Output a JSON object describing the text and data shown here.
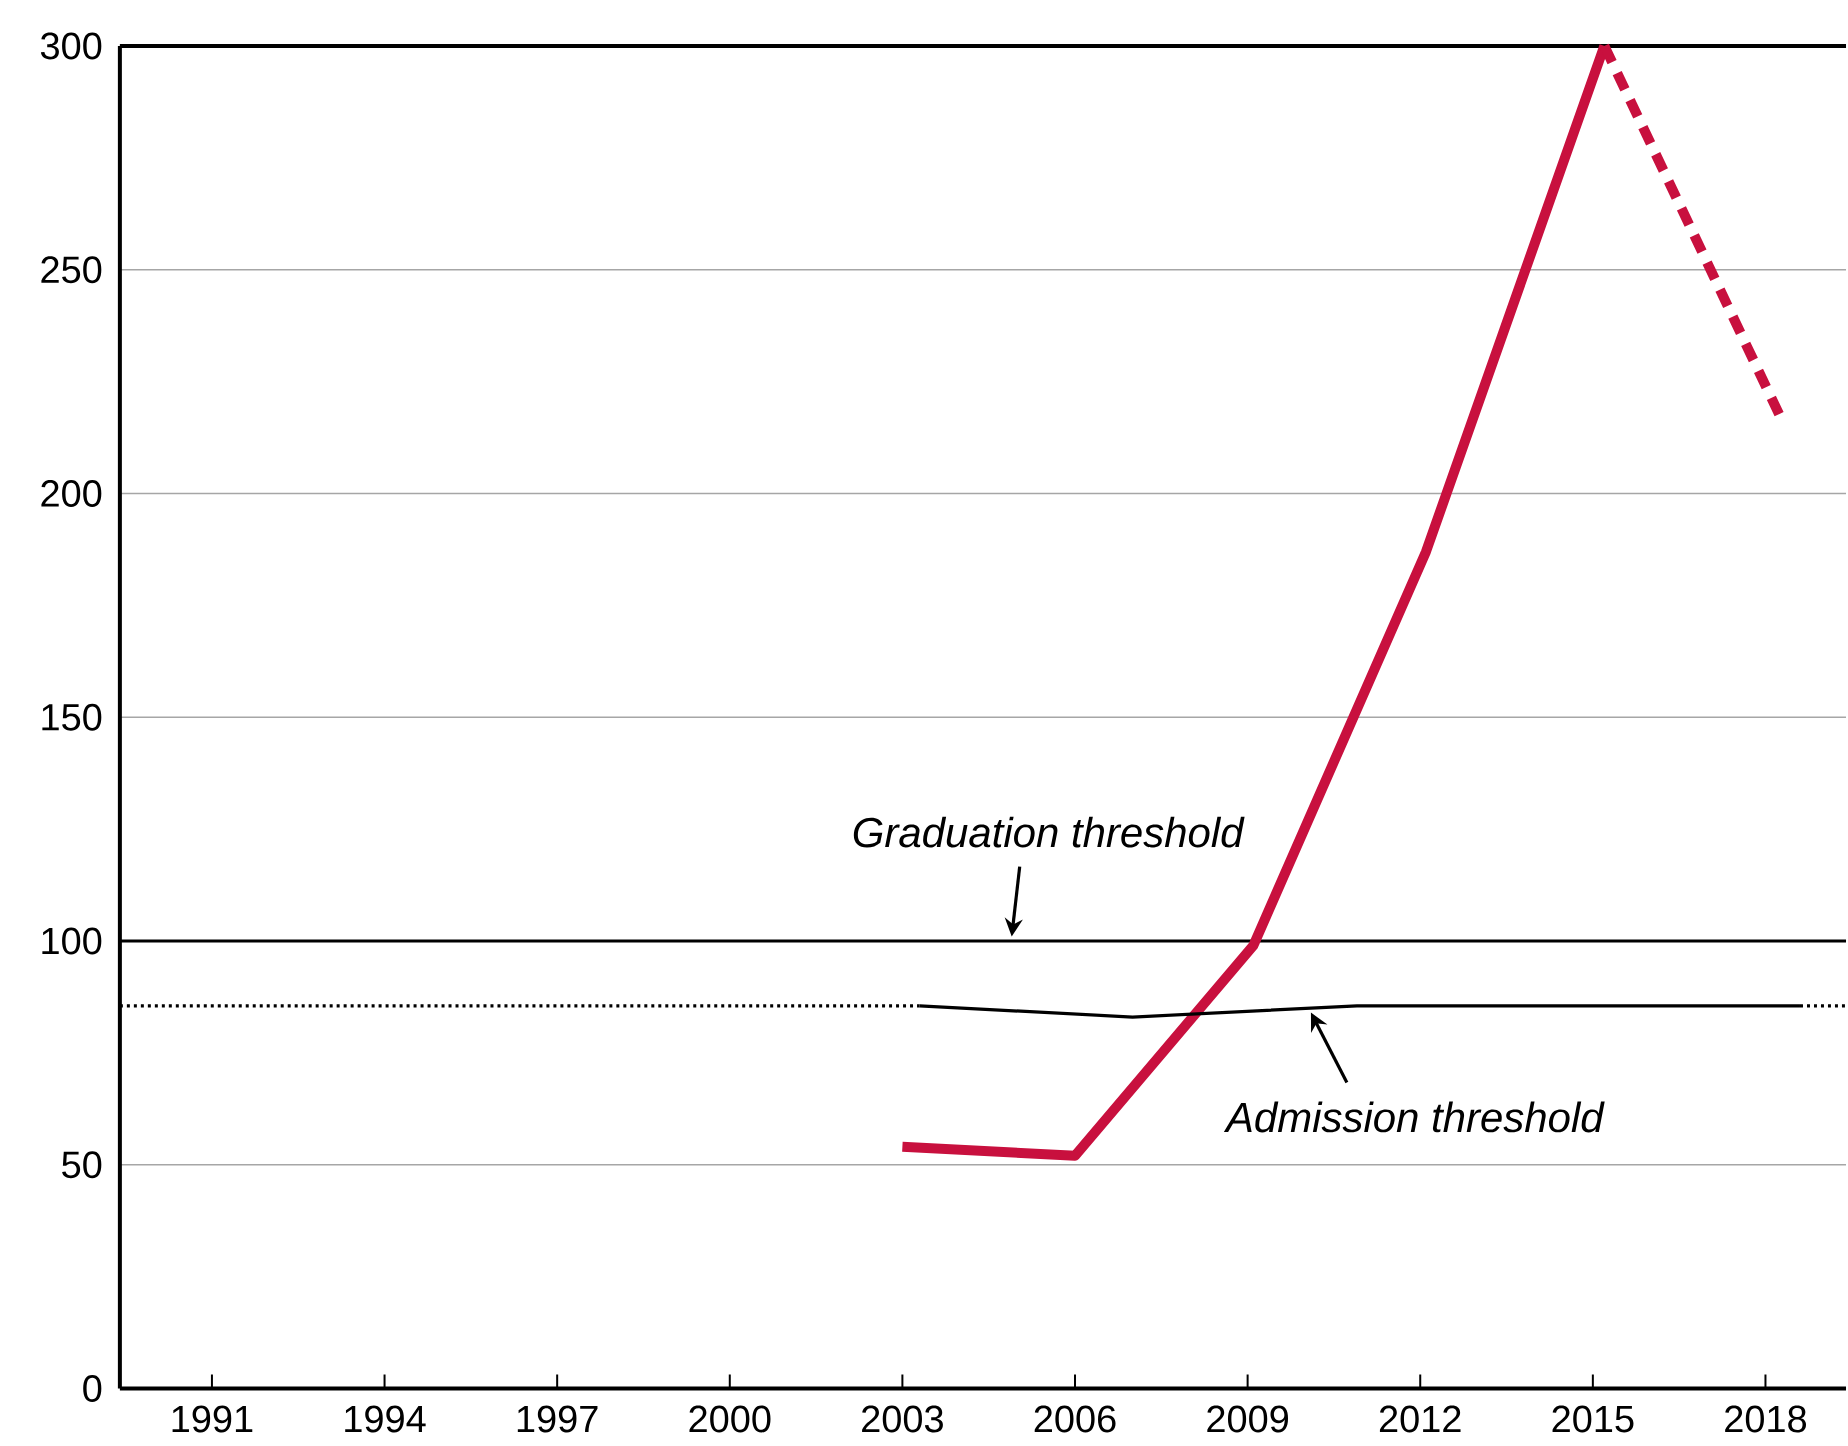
{
  "chart_data": {
    "type": "line",
    "xlim": [
      1989.4,
      2019.4
    ],
    "ylim": [
      0,
      300
    ],
    "xticks": [
      1991,
      1994,
      1997,
      2000,
      2003,
      2006,
      2009,
      2012,
      2015,
      2018
    ],
    "yticks": [
      0,
      50,
      100,
      150,
      200,
      250,
      300
    ],
    "grid": "y",
    "series": [
      {
        "color": "#c8103e",
        "x": [
          2003,
          2006,
          2009.1,
          2012.1,
          2015.2
        ],
        "values": [
          54,
          52,
          99,
          187,
          300
        ]
      },
      {
        "color": "#c8103e",
        "line_style": "dashed",
        "x": [
          2015.2,
          2018.3
        ],
        "values": [
          300,
          216
        ]
      },
      {
        "color": "#000000",
        "line_style": "dotted",
        "x": [
          1989.4,
          2003.3
        ],
        "values": [
          85.5,
          85.5
        ]
      },
      {
        "color": "#000000",
        "x": [
          2003.3,
          2007,
          2010.9,
          2018.6
        ],
        "values": [
          85.5,
          83,
          85.5,
          85.5
        ]
      },
      {
        "color": "#000000",
        "line_style": "dotted",
        "x": [
          2018.6,
          2019.4
        ],
        "values": [
          85.5,
          85.5
        ]
      }
    ],
    "ref_lines": [
      {
        "axis": "y",
        "value": 100,
        "color": "#000000"
      }
    ],
    "annotations": [
      {
        "text": "Graduation threshold",
        "x": 2004.9,
        "y": 101
      },
      {
        "text": "Admission threshold",
        "x": 2010.1,
        "y": 84
      }
    ]
  }
}
